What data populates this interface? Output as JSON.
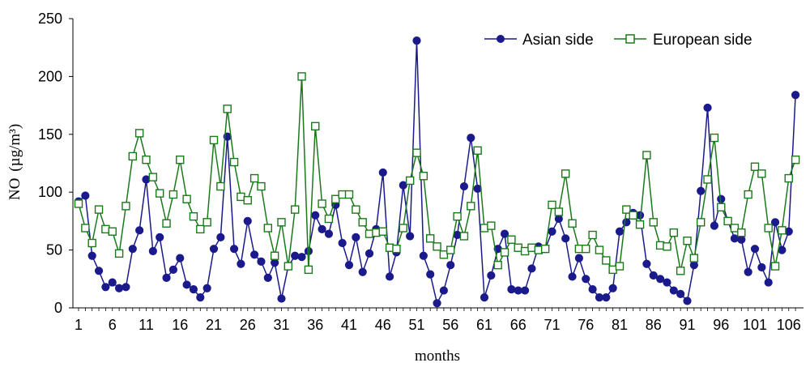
{
  "chart_data": {
    "type": "line",
    "title": "",
    "xlabel": "months",
    "ylabel": "NO",
    "ylabel_unit": "(µg/m³)",
    "ylim": [
      0,
      250
    ],
    "yticks": [
      0,
      50,
      100,
      150,
      200,
      250
    ],
    "xticks": [
      1,
      6,
      11,
      16,
      21,
      26,
      31,
      36,
      41,
      46,
      51,
      56,
      61,
      66,
      71,
      76,
      81,
      86,
      91,
      96,
      101,
      106
    ],
    "xlim": [
      1,
      107
    ],
    "legend_position": "top-right",
    "series": [
      {
        "name": "Asian side",
        "color": "#1a1a8c",
        "marker": "circle-filled",
        "values": [
          92,
          97,
          45,
          32,
          18,
          22,
          17,
          18,
          51,
          67,
          111,
          49,
          61,
          26,
          33,
          43,
          20,
          16,
          9,
          17,
          51,
          61,
          148,
          51,
          38,
          75,
          46,
          40,
          26,
          39,
          8,
          36,
          45,
          44,
          49,
          80,
          68,
          64,
          89,
          56,
          37,
          61,
          31,
          47,
          68,
          117,
          27,
          48,
          106,
          62,
          231,
          45,
          29,
          4,
          15,
          37,
          63,
          105,
          147,
          103,
          9,
          28,
          51,
          64,
          16,
          15,
          15,
          34,
          53,
          51,
          66,
          77,
          60,
          27,
          43,
          25,
          16,
          9,
          9,
          17,
          66,
          74,
          82,
          80,
          38,
          28,
          25,
          22,
          15,
          12,
          6,
          37,
          101,
          173,
          71,
          94,
          75,
          60,
          59,
          31,
          51,
          35,
          22,
          74,
          50,
          66,
          184
        ]
      },
      {
        "name": "European side",
        "color": "#1a7a1a",
        "marker": "square-open",
        "values": [
          90,
          69,
          56,
          85,
          68,
          66,
          47,
          88,
          131,
          151,
          128,
          113,
          99,
          73,
          98,
          128,
          94,
          79,
          68,
          74,
          145,
          105,
          172,
          126,
          96,
          93,
          112,
          105,
          69,
          45,
          74,
          36,
          85,
          200,
          33,
          157,
          90,
          77,
          94,
          98,
          98,
          85,
          74,
          64,
          65,
          66,
          52,
          51,
          69,
          110,
          134,
          114,
          60,
          53,
          46,
          50,
          79,
          62,
          88,
          136,
          69,
          71,
          37,
          48,
          59,
          52,
          49,
          52,
          50,
          51,
          89,
          83,
          116,
          73,
          51,
          51,
          63,
          50,
          41,
          33,
          36,
          85,
          80,
          72,
          132,
          74,
          54,
          53,
          65,
          32,
          58,
          43,
          74,
          111,
          147,
          87,
          75,
          69,
          65,
          98,
          122,
          116,
          69,
          36,
          67,
          112,
          128
        ]
      }
    ]
  }
}
